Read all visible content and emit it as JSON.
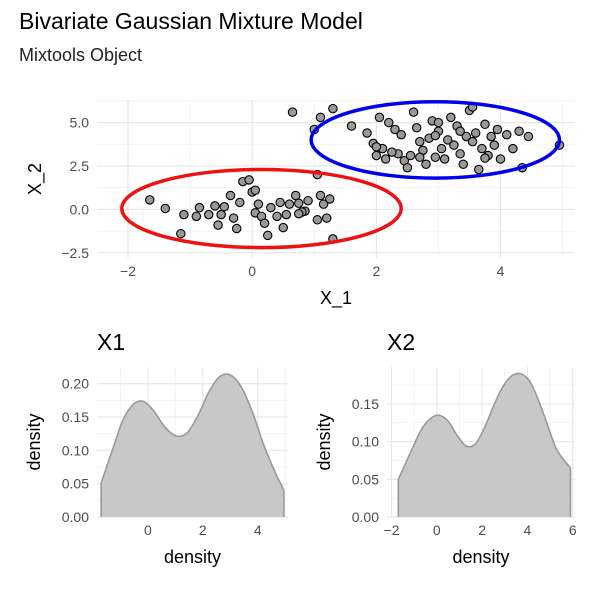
{
  "title": "Bivariate Gaussian Mixture Model",
  "subtitle": "Mixtools Object",
  "chart_data": [
    {
      "type": "scatter",
      "title": "",
      "xlabel": "X_1",
      "ylabel": "X_2",
      "xlim": [
        -2.5,
        5.2
      ],
      "ylim": [
        -2.8,
        6.3
      ],
      "xticks": [
        -2,
        0,
        2,
        4
      ],
      "yticks": [
        -2.5,
        0.0,
        2.5,
        5.0
      ],
      "ytick_labels": [
        "-2.5",
        "0.0",
        "2.5",
        "5.0"
      ],
      "grid": true,
      "point_color": "#999999",
      "points": [
        [
          -1.65,
          0.55
        ],
        [
          -1.4,
          0.05
        ],
        [
          -1.1,
          -0.3
        ],
        [
          -1.15,
          -1.4
        ],
        [
          -0.9,
          -0.4
        ],
        [
          -0.85,
          0.1
        ],
        [
          -0.7,
          -0.3
        ],
        [
          -0.6,
          0.2
        ],
        [
          -0.55,
          -0.9
        ],
        [
          -0.5,
          -0.3
        ],
        [
          -0.35,
          0.8
        ],
        [
          -0.3,
          -0.5
        ],
        [
          -0.25,
          -1.1
        ],
        [
          -0.2,
          0.4
        ],
        [
          -0.15,
          1.6
        ],
        [
          -0.05,
          1.7
        ],
        [
          0.0,
          1.0
        ],
        [
          0.05,
          -0.2
        ],
        [
          0.1,
          0.3
        ],
        [
          0.15,
          -0.4
        ],
        [
          0.2,
          -0.8
        ],
        [
          0.25,
          -1.5
        ],
        [
          0.3,
          0.1
        ],
        [
          0.4,
          -0.4
        ],
        [
          0.45,
          0.4
        ],
        [
          0.5,
          -1.05
        ],
        [
          0.55,
          -0.3
        ],
        [
          0.6,
          0.3
        ],
        [
          -0.45,
          0.15
        ],
        [
          0.05,
          1.1
        ],
        [
          0.7,
          0.8
        ],
        [
          0.75,
          0.35
        ],
        [
          0.85,
          -0.1
        ],
        [
          0.9,
          0.5
        ],
        [
          0.8,
          -0.15
        ],
        [
          1.1,
          0.8
        ],
        [
          1.15,
          0.3
        ],
        [
          1.2,
          -0.5
        ],
        [
          1.25,
          0.6
        ],
        [
          1.3,
          -1.7
        ],
        [
          1.05,
          -0.6
        ],
        [
          0.75,
          -0.25
        ],
        [
          0.65,
          5.6
        ],
        [
          1.0,
          4.6
        ],
        [
          1.05,
          2.0
        ],
        [
          1.1,
          5.3
        ],
        [
          1.3,
          5.8
        ],
        [
          1.6,
          4.8
        ],
        [
          1.85,
          4.4
        ],
        [
          1.95,
          3.8
        ],
        [
          2.0,
          3.1
        ],
        [
          2.05,
          5.3
        ],
        [
          2.1,
          3.5
        ],
        [
          2.2,
          5.0
        ],
        [
          2.3,
          4.6
        ],
        [
          2.35,
          3.2
        ],
        [
          2.4,
          4.3
        ],
        [
          2.45,
          2.8
        ],
        [
          2.5,
          2.4
        ],
        [
          2.55,
          3.1
        ],
        [
          2.6,
          5.6
        ],
        [
          2.65,
          4.7
        ],
        [
          2.7,
          3.9
        ],
        [
          2.75,
          3.4
        ],
        [
          2.8,
          2.6
        ],
        [
          2.85,
          4.1
        ],
        [
          2.9,
          5.1
        ],
        [
          2.95,
          3.0
        ],
        [
          3.0,
          4.5
        ],
        [
          3.05,
          3.5
        ],
        [
          3.1,
          2.9
        ],
        [
          3.15,
          4.0
        ],
        [
          3.2,
          5.3
        ],
        [
          3.25,
          3.7
        ],
        [
          3.3,
          4.8
        ],
        [
          3.35,
          3.2
        ],
        [
          3.4,
          2.6
        ],
        [
          3.45,
          4.2
        ],
        [
          3.5,
          5.7
        ],
        [
          3.55,
          3.9
        ],
        [
          3.6,
          4.4
        ],
        [
          3.65,
          2.3
        ],
        [
          3.7,
          3.5
        ],
        [
          3.75,
          4.9
        ],
        [
          3.8,
          3.1
        ],
        [
          3.85,
          4.2
        ],
        [
          3.9,
          3.7
        ],
        [
          3.95,
          4.6
        ],
        [
          4.0,
          2.9
        ],
        [
          4.1,
          4.3
        ],
        [
          4.2,
          3.5
        ],
        [
          4.3,
          4.5
        ],
        [
          4.35,
          2.4
        ],
        [
          4.45,
          4.2
        ],
        [
          4.95,
          3.7
        ],
        [
          2.0,
          3.6
        ],
        [
          2.15,
          2.9
        ],
        [
          2.25,
          3.3
        ],
        [
          2.7,
          3.0
        ],
        [
          3.0,
          5.0
        ],
        [
          3.35,
          4.5
        ],
        [
          3.55,
          5.9
        ],
        [
          2.95,
          4.25
        ],
        [
          3.75,
          2.95
        ]
      ],
      "ellipses": [
        {
          "cx": 0.15,
          "cy": 0.05,
          "rx": 2.25,
          "ry": 2.25,
          "color": "#ee1111"
        },
        {
          "cx": 2.95,
          "cy": 4.0,
          "rx": 2.0,
          "ry": 2.2,
          "color": "#0000ee"
        }
      ]
    },
    {
      "type": "area",
      "title": "X1",
      "xlabel": "density",
      "ylabel": "density",
      "xlim": [
        -1.85,
        5.1
      ],
      "ylim": [
        0.0,
        0.225
      ],
      "xticks": [
        0,
        2,
        4
      ],
      "yticks": [
        0.0,
        0.05,
        0.1,
        0.15,
        0.2
      ],
      "ytick_labels": [
        "0.00",
        "0.05",
        "0.10",
        "0.15",
        "0.20"
      ],
      "grid": true,
      "fill": "#c8c8c8",
      "stroke": "#999999",
      "x": [
        -1.7,
        -1.3,
        -0.9,
        -0.5,
        -0.15,
        0.2,
        0.6,
        1.0,
        1.4,
        1.8,
        2.2,
        2.6,
        3.0,
        3.4,
        3.8,
        4.2,
        4.6,
        4.95
      ],
      "y": [
        0.051,
        0.099,
        0.146,
        0.17,
        0.173,
        0.16,
        0.136,
        0.122,
        0.125,
        0.15,
        0.186,
        0.21,
        0.213,
        0.195,
        0.158,
        0.11,
        0.07,
        0.04
      ]
    },
    {
      "type": "area",
      "title": "X2",
      "xlabel": "density",
      "ylabel": "density",
      "xlim": [
        -2.2,
        6.1
      ],
      "ylim": [
        0.0,
        0.199
      ],
      "xticks": [
        -2,
        0,
        2,
        4,
        6
      ],
      "yticks": [
        0.0,
        0.05,
        0.1,
        0.15
      ],
      "ytick_labels": [
        "0.00",
        "0.05",
        "0.10",
        "0.15"
      ],
      "grid": true,
      "fill": "#c8c8c8",
      "stroke": "#999999",
      "x": [
        -1.7,
        -1.2,
        -0.7,
        -0.3,
        0.1,
        0.5,
        0.9,
        1.3,
        1.7,
        2.1,
        2.5,
        2.9,
        3.3,
        3.7,
        4.1,
        4.5,
        4.9,
        5.3,
        5.9
      ],
      "y": [
        0.05,
        0.083,
        0.115,
        0.13,
        0.135,
        0.127,
        0.108,
        0.094,
        0.097,
        0.118,
        0.147,
        0.172,
        0.187,
        0.19,
        0.18,
        0.154,
        0.121,
        0.089,
        0.065
      ]
    }
  ]
}
